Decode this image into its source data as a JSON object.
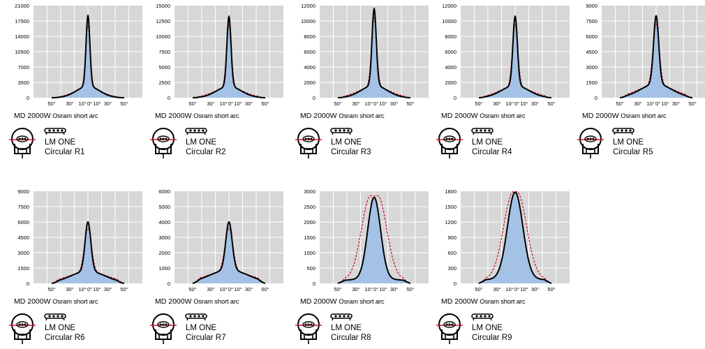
{
  "colors": {
    "plot_bg": "#d7d7d7",
    "grid": "#ffffff",
    "fill": "#a4c2e6",
    "curve": "#000000",
    "dashed": "#d0152a"
  },
  "x_tick_labels": [
    "50°",
    "30°",
    "10°",
    "0°",
    "10°",
    "30°",
    "50°"
  ],
  "chart_data": [
    {
      "type": "area",
      "lamp": "MD 2000W",
      "lamp_sub": "Osram short arc",
      "optic_line1": "LM ONE",
      "optic_line2": "Circular R1",
      "ylim": [
        0,
        21000
      ],
      "y_ticks": [
        "21000",
        "17500",
        "14000",
        "10500",
        "7000",
        "3500",
        "0"
      ],
      "peak": 18700,
      "beam_width": 3.0,
      "dashed_peak": 16500,
      "dashed_width": 3.5,
      "dashed_flat": 0,
      "shoulder": 0.14
    },
    {
      "type": "area",
      "lamp": "MD 2000W",
      "lamp_sub": "Osram short arc",
      "optic_line1": "LM ONE",
      "optic_line2": "Circular R2",
      "ylim": [
        0,
        15000
      ],
      "y_ticks": [
        "15000",
        "12500",
        "10000",
        "7500",
        "5000",
        "2500",
        "0"
      ],
      "peak": 13200,
      "beam_width": 3.2,
      "dashed_peak": 11800,
      "dashed_width": 3.8,
      "dashed_flat": 0,
      "shoulder": 0.14
    },
    {
      "type": "area",
      "lamp": "MD 2000W",
      "lamp_sub": "Osram short arc",
      "optic_line1": "LM ONE",
      "optic_line2": "Circular R3",
      "ylim": [
        0,
        12000
      ],
      "y_ticks": [
        "12000",
        "10000",
        "8000",
        "6000",
        "4000",
        "2000",
        "0"
      ],
      "peak": 11600,
      "beam_width": 3.3,
      "dashed_peak": 10400,
      "dashed_width": 4.0,
      "dashed_flat": 0,
      "shoulder": 0.14
    },
    {
      "type": "area",
      "lamp": "MD 2000W",
      "lamp_sub": "Osram short arc",
      "optic_line1": "LM ONE",
      "optic_line2": "Circular R4",
      "ylim": [
        0,
        12000
      ],
      "y_ticks": [
        "12000",
        "10000",
        "8000",
        "6000",
        "4000",
        "2000",
        "0"
      ],
      "peak": 10600,
      "beam_width": 3.5,
      "dashed_peak": 9500,
      "dashed_width": 4.2,
      "dashed_flat": 0,
      "shoulder": 0.15
    },
    {
      "type": "area",
      "lamp": "MD 2000W",
      "lamp_sub": "Osram short arc",
      "optic_line1": "LM ONE",
      "optic_line2": "Circular R5",
      "ylim": [
        0,
        9000
      ],
      "y_ticks": [
        "9000",
        "7500",
        "6000",
        "4500",
        "3000",
        "1500",
        "0"
      ],
      "peak": 8000,
      "beam_width": 4.0,
      "dashed_peak": 7200,
      "dashed_width": 4.8,
      "dashed_flat": 0,
      "shoulder": 0.17
    },
    {
      "type": "area",
      "lamp": "MD 2000W",
      "lamp_sub": "Osram short arc",
      "optic_line1": "LM ONE",
      "optic_line2": "Circular R6",
      "ylim": [
        0,
        9000
      ],
      "y_ticks": [
        "9000",
        "7500",
        "6000",
        "4500",
        "3000",
        "1500",
        "0"
      ],
      "peak": 6000,
      "beam_width": 4.5,
      "dashed_peak": 5400,
      "dashed_width": 5.5,
      "dashed_flat": 0,
      "shoulder": 0.2
    },
    {
      "type": "area",
      "lamp": "MD 2000W",
      "lamp_sub": "Osram short arc",
      "optic_line1": "LM ONE",
      "optic_line2": "Circular R7",
      "ylim": [
        0,
        6000
      ],
      "y_ticks": [
        "6000",
        "5000",
        "4000",
        "3000",
        "2000",
        "1000",
        "0"
      ],
      "peak": 4000,
      "beam_width": 5.0,
      "dashed_peak": 3600,
      "dashed_width": 6.0,
      "dashed_flat": 0,
      "shoulder": 0.22
    },
    {
      "type": "area",
      "lamp": "MD 2000W",
      "lamp_sub": "Osram short arc",
      "optic_line1": "LM ONE",
      "optic_line2": "Circular R8",
      "ylim": [
        0,
        3000
      ],
      "y_ticks": [
        "3000",
        "2500",
        "2000",
        "1500",
        "1000",
        "500",
        "0"
      ],
      "peak": 2800,
      "beam_width": 10.0,
      "dashed_peak": 2850,
      "dashed_width": 14.0,
      "dashed_flat": 4.0,
      "shoulder": 0.05
    },
    {
      "type": "area",
      "lamp": "MD 2000W",
      "lamp_sub": "Osram short arc",
      "optic_line1": "LM ONE",
      "optic_line2": "Circular R9",
      "ylim": [
        0,
        1800
      ],
      "y_ticks": [
        "1800",
        "1500",
        "1200",
        "900",
        "600",
        "300",
        "0"
      ],
      "peak": 1780,
      "beam_width": 12.0,
      "dashed_peak": 1790,
      "dashed_width": 15.0,
      "dashed_flat": 2.0,
      "shoulder": 0.05
    }
  ]
}
